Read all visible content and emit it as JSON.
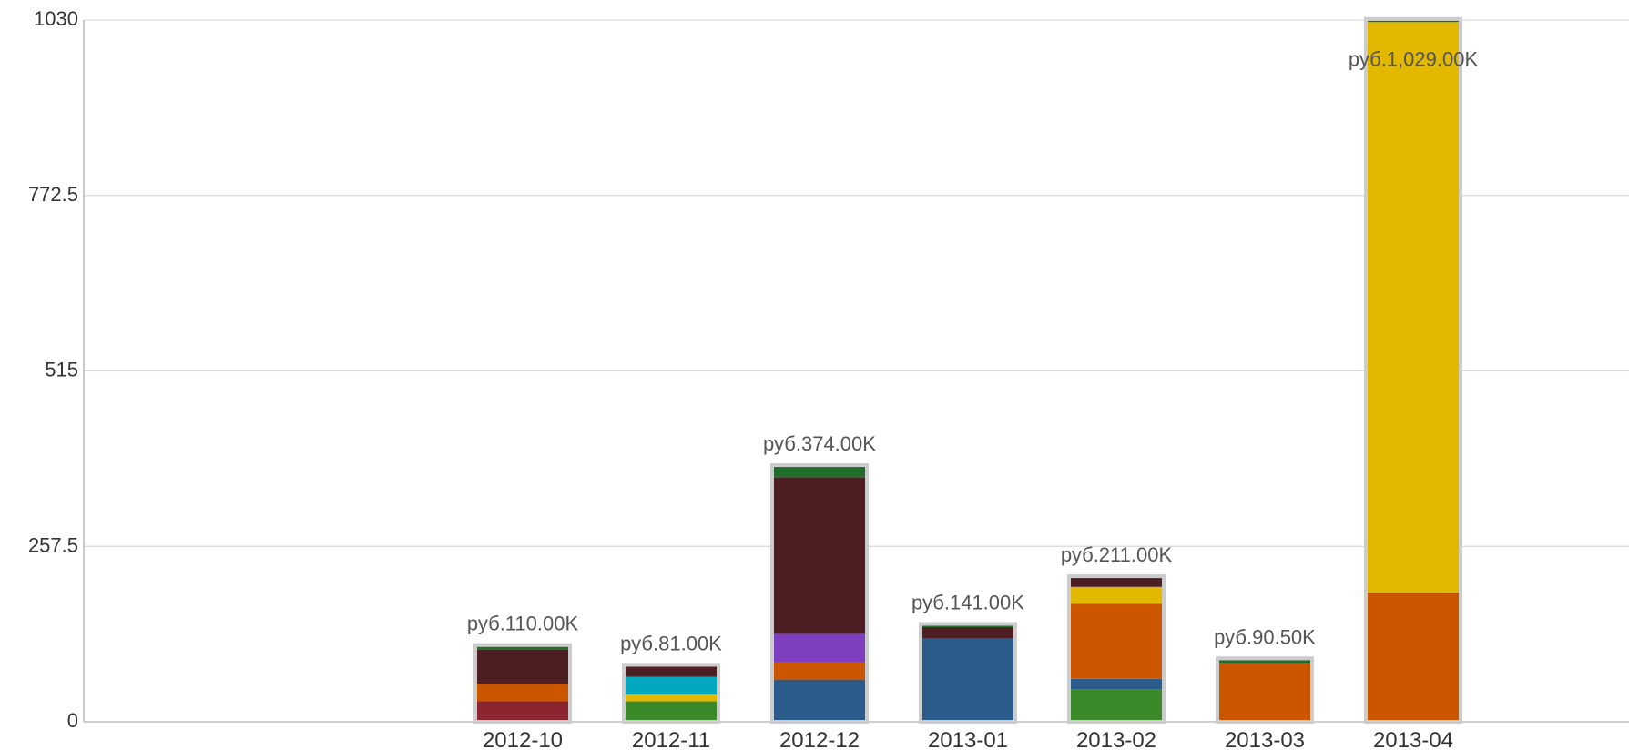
{
  "chart_data": {
    "type": "bar",
    "stacked": true,
    "title": "",
    "xlabel": "",
    "ylabel": "",
    "ylim": [
      0,
      1030
    ],
    "yticks": [
      "0",
      "257.5",
      "515",
      "772.5",
      "1030"
    ],
    "grid": true,
    "categories": [
      "2012-10",
      "2012-11",
      "2012-12",
      "2013-01",
      "2013-02",
      "2013-03",
      "2013-04"
    ],
    "total_labels": [
      "руб.110.00K",
      "руб.81.00K",
      "руб.374.00K",
      "руб.141.00K",
      "руб.211.00K",
      "руб.90.50K",
      "руб.1,029.00K"
    ],
    "series": [
      {
        "color": "#3a8a2a",
        "values": [
          0,
          30,
          0,
          0,
          48,
          0,
          0
        ]
      },
      {
        "color": "#2a5b8a",
        "values": [
          0,
          0,
          62,
          122,
          15,
          2,
          2
        ]
      },
      {
        "color": "#8b2530",
        "values": [
          30,
          0,
          0,
          0,
          0,
          0,
          0
        ]
      },
      {
        "color": "#cc5500",
        "values": [
          26,
          0,
          25,
          0,
          110,
          84,
          188
        ]
      },
      {
        "color": "#e3b800",
        "values": [
          0,
          10,
          0,
          0,
          25,
          0,
          837
        ]
      },
      {
        "color": "#00a8c0",
        "values": [
          0,
          26,
          0,
          0,
          0,
          0,
          0
        ]
      },
      {
        "color": "#7f3fbf",
        "values": [
          0,
          0,
          42,
          0,
          0,
          0,
          0
        ]
      },
      {
        "color": "#4e1f22",
        "values": [
          50,
          15,
          230,
          17,
          13,
          0,
          0
        ]
      },
      {
        "color": "#1f6e2a",
        "values": [
          4,
          0,
          15,
          2,
          0,
          4.5,
          2
        ]
      }
    ]
  }
}
